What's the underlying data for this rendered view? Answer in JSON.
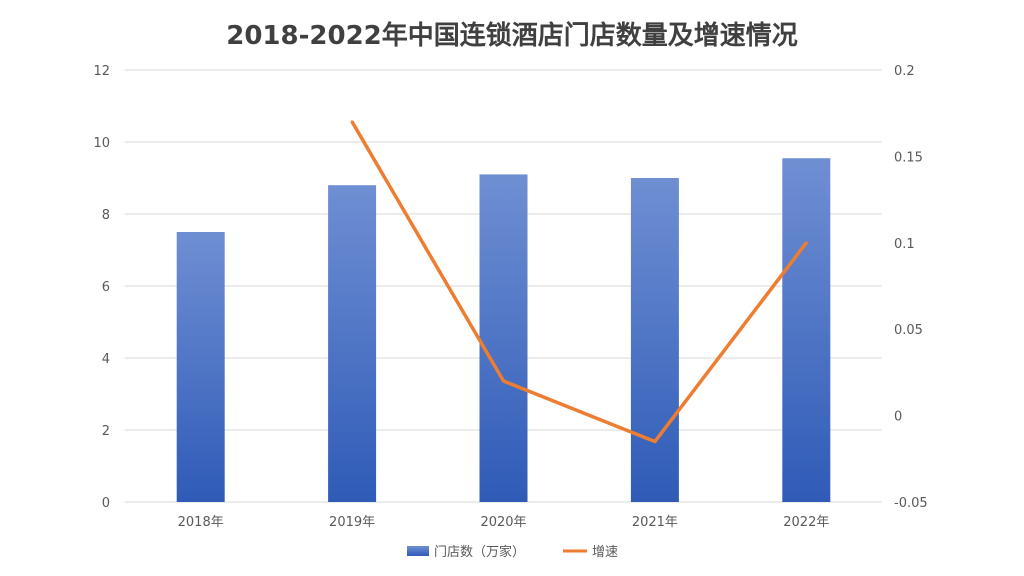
{
  "chart_data": {
    "type": "bar",
    "title": "2018-2022年中国连锁酒店门店数量及增速情况",
    "categories": [
      "2018年",
      "2019年",
      "2020年",
      "2021年",
      "2022年"
    ],
    "series": [
      {
        "name": "门店数（万家）",
        "type": "bar",
        "axis": "left",
        "color": "#4472C4",
        "values": [
          7.5,
          8.8,
          9.1,
          9.0,
          9.55
        ]
      },
      {
        "name": "增速",
        "type": "line",
        "axis": "right",
        "color": "#ED7D31",
        "values": [
          null,
          0.17,
          0.02,
          -0.015,
          0.1
        ]
      }
    ],
    "y_left": {
      "min": 0,
      "max": 12,
      "ticks": [
        "0",
        "2",
        "4",
        "6",
        "8",
        "10",
        "12"
      ]
    },
    "y_right": {
      "min": -0.05,
      "max": 0.2,
      "ticks": [
        "-0.05",
        "0",
        "0.05",
        "0.1",
        "0.15",
        "0.2"
      ]
    },
    "grid": true,
    "legend_position": "bottom"
  }
}
